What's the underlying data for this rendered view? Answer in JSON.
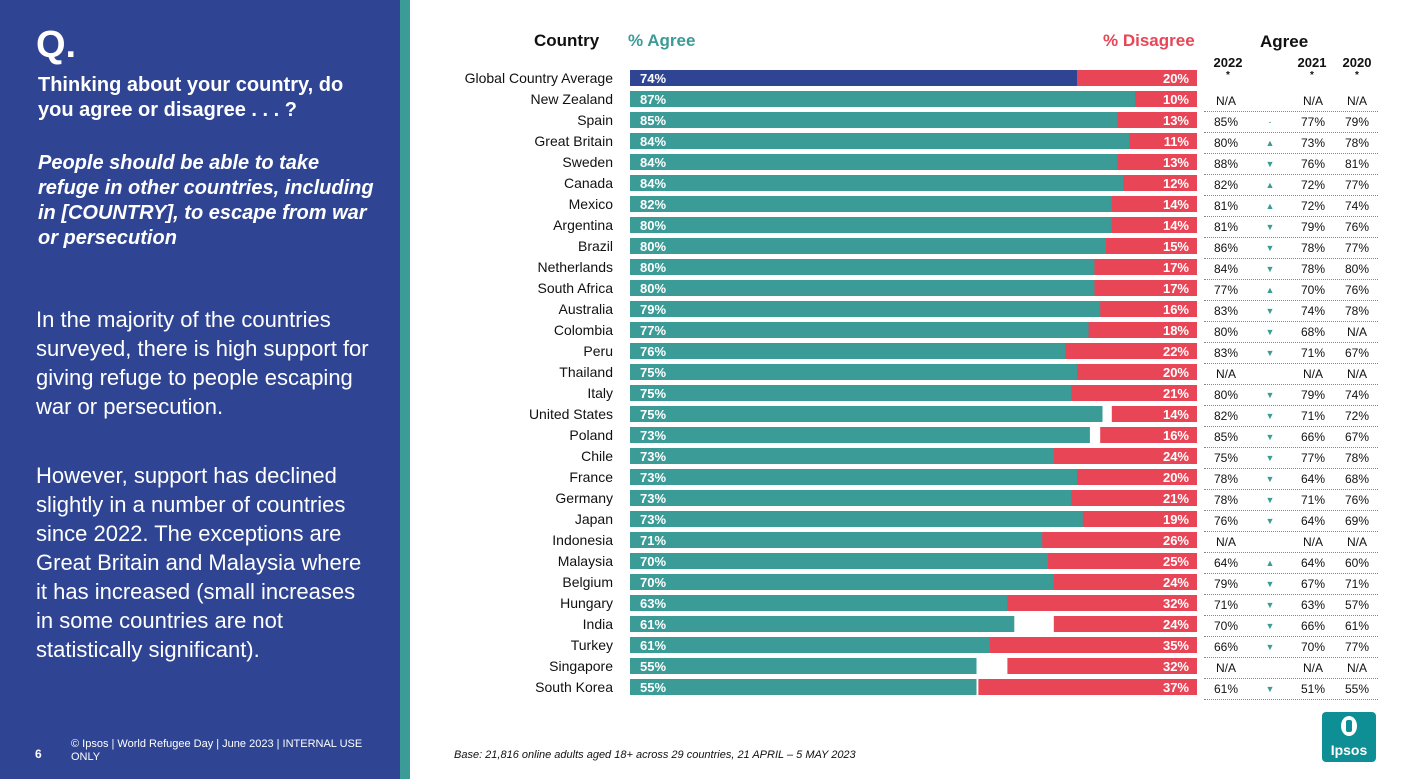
{
  "slide": {
    "q_mark": "Q.",
    "question": "Thinking about your country, do you agree or disagree . . . ?",
    "statement": "People should be able to take refuge in other countries, including in [COUNTRY], to escape from war or persecution",
    "para1": "In the majority of the countries surveyed, there is high support for giving refuge to people escaping war or persecution.",
    "para2": "However, support has declined slightly in a number of countries since 2022. The exceptions are Great Britain and Malaysia where it has increased (small increases in some countries are not statistically significant).",
    "page_number": "6",
    "footer": "© Ipsos | World Refugee Day | June 2023 | INTERNAL USE ONLY",
    "base_note": "Base: 21,816 online adults aged 18+ across 29 countries,  21 APRIL – 5 MAY 2023",
    "logo_text": "Ipsos"
  },
  "headers": {
    "country": "Country",
    "agree": "% Agree",
    "disagree": "% Disagree",
    "agree_trend": "Agree",
    "year_2022": "2022",
    "year_2021": "2021",
    "year_2020": "2020",
    "star": "*"
  },
  "colors": {
    "navy": "#2f4594",
    "teal": "#3a9b97",
    "red": "#e84556"
  },
  "chart_data": {
    "type": "bar",
    "orientation": "horizontal",
    "categories": [
      "Global Country Average",
      "New Zealand",
      "Spain",
      "Great Britain",
      "Sweden",
      "Canada",
      "Mexico",
      "Argentina",
      "Brazil",
      "Netherlands",
      "South Africa",
      "Australia",
      "Colombia",
      "Peru",
      "Thailand",
      "Italy",
      "United States",
      "Poland",
      "Chile",
      "France",
      "Germany",
      "Japan",
      "Indonesia",
      "Malaysia",
      "Belgium",
      "Hungary",
      "India",
      "Turkey",
      "Singapore",
      "South Korea"
    ],
    "series": [
      {
        "name": "% Agree",
        "values": [
          74,
          87,
          85,
          84,
          84,
          84,
          82,
          80,
          80,
          80,
          80,
          79,
          77,
          76,
          75,
          75,
          75,
          73,
          73,
          73,
          73,
          73,
          71,
          70,
          70,
          63,
          61,
          61,
          55,
          55
        ]
      },
      {
        "name": "% Disagree",
        "values": [
          20,
          10,
          13,
          11,
          13,
          12,
          14,
          14,
          15,
          17,
          17,
          16,
          18,
          22,
          20,
          21,
          14,
          16,
          24,
          20,
          21,
          19,
          26,
          25,
          24,
          32,
          24,
          35,
          32,
          37
        ]
      }
    ],
    "trend": {
      "agree_2022": [
        "",
        "N/A",
        "85%",
        "80%",
        "88%",
        "82%",
        "81%",
        "81%",
        "86%",
        "84%",
        "77%",
        "83%",
        "80%",
        "83%",
        "N/A",
        "80%",
        "82%",
        "85%",
        "75%",
        "78%",
        "78%",
        "76%",
        "N/A",
        "64%",
        "79%",
        "71%",
        "70%",
        "66%",
        "N/A",
        "61%"
      ],
      "change": [
        "",
        "",
        "-",
        "▲",
        "▼",
        "▲",
        "▲",
        "▼",
        "▼",
        "▼",
        "▲",
        "▼",
        "▼",
        "▼",
        "",
        "▼",
        "▼",
        "▼",
        "▼",
        "▼",
        "▼",
        "▼",
        "",
        "▲",
        "▼",
        "▼",
        "▼",
        "▼",
        "",
        "▼"
      ],
      "agree_2021": [
        "",
        "N/A",
        "77%",
        "73%",
        "76%",
        "72%",
        "72%",
        "79%",
        "78%",
        "78%",
        "70%",
        "74%",
        "68%",
        "71%",
        "N/A",
        "79%",
        "71%",
        "66%",
        "77%",
        "64%",
        "71%",
        "64%",
        "N/A",
        "64%",
        "67%",
        "63%",
        "66%",
        "70%",
        "N/A",
        "51%"
      ],
      "agree_2020": [
        "",
        "N/A",
        "79%",
        "78%",
        "81%",
        "77%",
        "74%",
        "76%",
        "77%",
        "80%",
        "76%",
        "78%",
        "N/A",
        "67%",
        "N/A",
        "74%",
        "72%",
        "67%",
        "78%",
        "68%",
        "76%",
        "69%",
        "N/A",
        "60%",
        "71%",
        "57%",
        "61%",
        "77%",
        "N/A",
        "55%"
      ]
    }
  }
}
